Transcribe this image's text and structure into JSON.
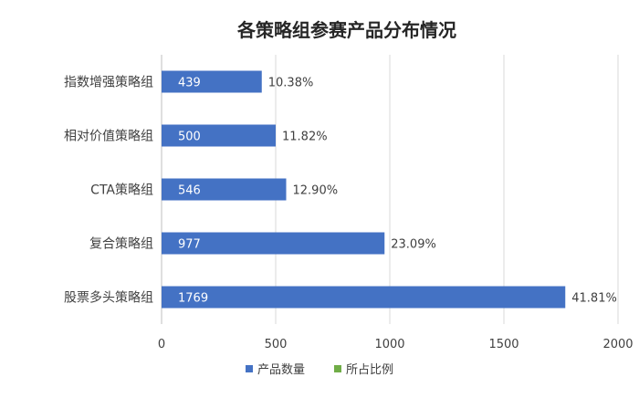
{
  "chart_data": {
    "type": "bar",
    "orientation": "horizontal",
    "title": "各策略组参赛产品分布情况",
    "categories": [
      "指数增强策略组",
      "相对价值策略组",
      "CTA策略组",
      "复合策略组",
      "股票多头策略组"
    ],
    "series": [
      {
        "name": "产品数量",
        "values": [
          439,
          500,
          546,
          977,
          1769
        ],
        "color": "#4472c4"
      },
      {
        "name": "所占比例",
        "values": [
          "10.38%",
          "11.82%",
          "12.90%",
          "23.09%",
          "41.81%"
        ],
        "color": "#70ad47"
      }
    ],
    "xlim": [
      0,
      2000
    ],
    "xticks": [
      0,
      500,
      1000,
      1500,
      2000
    ],
    "grid": true,
    "legend_position": "bottom"
  }
}
